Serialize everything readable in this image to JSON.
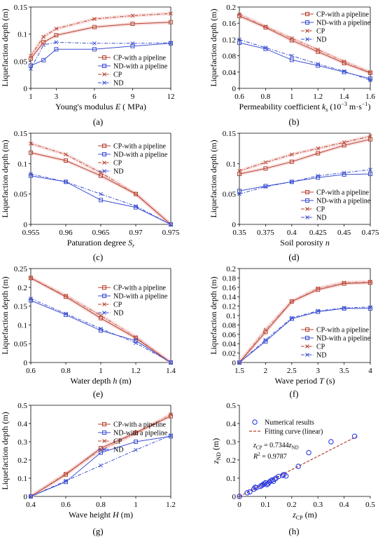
{
  "colors": {
    "cp": "#b5422e",
    "nd": "#3b4fd1",
    "fit": "#b5422e",
    "scatter": "#2030e0"
  },
  "chart_data": [
    {
      "panel": "(a)",
      "type": "line",
      "xlabel_pre": "Young's modulus ",
      "xlabel_var": "E",
      "xlabel_post": " ( MPa)",
      "ylabel": "Liquefaction depth (m)",
      "xlim": [
        1,
        12
      ],
      "ylim": [
        0,
        0.15
      ],
      "xticks": [
        1,
        3,
        6,
        9,
        12
      ],
      "xtick_labels": [
        "1",
        "3",
        "6",
        "9",
        "12"
      ],
      "yticks": [
        0,
        0.05,
        0.1,
        0.15
      ],
      "ytick_labels": [
        "0",
        "0.05",
        "0.1",
        "0.15"
      ],
      "x": [
        1,
        2,
        3,
        6,
        9,
        12
      ],
      "series": [
        {
          "name": "CP-with a pipeline",
          "style": "cp",
          "values": [
            0.055,
            0.085,
            0.098,
            0.113,
            0.119,
            0.122
          ]
        },
        {
          "name": "ND-with a pipeline",
          "style": "nd",
          "values": [
            0.042,
            0.052,
            0.072,
            0.072,
            0.078,
            0.083
          ]
        },
        {
          "name": "CP",
          "style": "cpd",
          "values": [
            0.06,
            0.095,
            0.11,
            0.128,
            0.134,
            0.138
          ]
        },
        {
          "name": "ND",
          "style": "ndd",
          "values": [
            0.036,
            0.08,
            0.085,
            0.083,
            0.083,
            0.084
          ]
        }
      ]
    },
    {
      "panel": "(b)",
      "type": "line",
      "xlabel_pre": "Permeability coefficient ",
      "xlabel_var": "k",
      "xlabel_sub": "s",
      "xlabel_post": " (10",
      "xlabel_sup": "−3",
      "xlabel_post2": " m·s",
      "xlabel_sup2": "−1",
      "xlabel_post3": ")",
      "ylabel": "Liquefaction depth (m)",
      "xlim": [
        0.6,
        1.6
      ],
      "ylim": [
        0,
        0.2
      ],
      "xticks": [
        0.6,
        0.8,
        1,
        1.2,
        1.4,
        1.6
      ],
      "xtick_labels": [
        "0.6",
        "0.8",
        "1",
        "1.2",
        "1.4",
        "1.6"
      ],
      "yticks": [
        0,
        0.04,
        0.08,
        0.12,
        0.16,
        0.2
      ],
      "ytick_labels": [
        "0",
        "0.04",
        "0.08",
        "0.12",
        "0.16",
        "0.2"
      ],
      "x": [
        0.6,
        0.8,
        1.0,
        1.2,
        1.4,
        1.6
      ],
      "series": [
        {
          "name": "CP-with a pipeline",
          "style": "cp",
          "values": [
            0.178,
            0.15,
            0.118,
            0.09,
            0.062,
            0.038
          ]
        },
        {
          "name": "ND-with a pipeline",
          "style": "nd",
          "values": [
            0.112,
            0.097,
            0.07,
            0.056,
            0.04,
            0.024
          ]
        },
        {
          "name": "CP",
          "style": "cpd",
          "values": [
            0.182,
            0.152,
            0.123,
            0.095,
            0.066,
            0.04
          ]
        },
        {
          "name": "ND",
          "style": "ndd",
          "values": [
            0.12,
            0.1,
            0.08,
            0.06,
            0.042,
            0.02
          ]
        }
      ]
    },
    {
      "panel": "(c)",
      "type": "line",
      "xlabel_pre": "Paturation degree ",
      "xlabel_var": "S",
      "xlabel_sub": "r",
      "xlabel_post": "",
      "ylabel": "Liquefaction depth (m)",
      "xlim": [
        0.955,
        0.975
      ],
      "ylim": [
        0,
        0.15
      ],
      "xticks": [
        0.955,
        0.96,
        0.965,
        0.97,
        0.975
      ],
      "xtick_labels": [
        "0.955",
        "0.96",
        "0.965",
        "0.97",
        "0.975"
      ],
      "yticks": [
        0,
        0.05,
        0.1,
        0.15
      ],
      "ytick_labels": [
        "0",
        "0.05",
        "0.1",
        "0.15"
      ],
      "x": [
        0.955,
        0.96,
        0.965,
        0.97,
        0.975
      ],
      "series": [
        {
          "name": "CP-with a pipeline",
          "style": "cp",
          "values": [
            0.118,
            0.105,
            0.08,
            0.05,
            0.0
          ]
        },
        {
          "name": "ND-with a pipeline",
          "style": "nd",
          "values": [
            0.08,
            0.07,
            0.04,
            0.028,
            0.0
          ]
        },
        {
          "name": "CP",
          "style": "cpd",
          "values": [
            0.133,
            0.115,
            0.085,
            0.05,
            0.0
          ]
        },
        {
          "name": "ND",
          "style": "ndd",
          "values": [
            0.083,
            0.07,
            0.05,
            0.03,
            0.0
          ]
        }
      ]
    },
    {
      "panel": "(d)",
      "type": "line",
      "xlabel_pre": "Soil porosity ",
      "xlabel_var": "n",
      "xlabel_post": "",
      "ylabel": "Liquefaction depth (m)",
      "xlim": [
        0.35,
        0.475
      ],
      "ylim": [
        0,
        0.15
      ],
      "xticks": [
        0.35,
        0.375,
        0.4,
        0.425,
        0.45,
        0.475
      ],
      "xtick_labels": [
        "0.35",
        "0.375",
        "0.4",
        "0.425",
        "0.45",
        "0.475"
      ],
      "yticks": [
        0,
        0.05,
        0.1,
        0.15
      ],
      "ytick_labels": [
        "0",
        "0.05",
        "0.1",
        "0.15"
      ],
      "x": [
        0.35,
        0.375,
        0.4,
        0.425,
        0.45,
        0.475
      ],
      "series": [
        {
          "name": "CP-with a pipeline",
          "style": "cp",
          "values": [
            0.083,
            0.092,
            0.103,
            0.117,
            0.13,
            0.14
          ]
        },
        {
          "name": "ND-with a pipeline",
          "style": "nd",
          "values": [
            0.055,
            0.063,
            0.07,
            0.077,
            0.082,
            0.083
          ]
        },
        {
          "name": "CP",
          "style": "cpd",
          "values": [
            0.088,
            0.102,
            0.115,
            0.125,
            0.135,
            0.145
          ]
        },
        {
          "name": "ND",
          "style": "ndd",
          "values": [
            0.05,
            0.062,
            0.07,
            0.08,
            0.085,
            0.09
          ]
        }
      ]
    },
    {
      "panel": "(e)",
      "type": "line",
      "xlabel_pre": "Water depth ",
      "xlabel_var": "h",
      "xlabel_post": " (m)",
      "ylabel": "Liquefaction depth (m)",
      "xlim": [
        0.6,
        1.4
      ],
      "ylim": [
        0,
        0.25
      ],
      "xticks": [
        0.6,
        0.8,
        1,
        1.2,
        1.4
      ],
      "xtick_labels": [
        "0.6",
        "0.8",
        "1",
        "1.2",
        "1.4"
      ],
      "yticks": [
        0,
        0.05,
        0.1,
        0.15,
        0.2,
        0.25
      ],
      "ytick_labels": [
        "0",
        "0.05",
        "0.1",
        "0.15",
        "0.2",
        "0.25"
      ],
      "x": [
        0.6,
        0.8,
        1.0,
        1.2,
        1.4
      ],
      "series": [
        {
          "name": "CP-with a pipeline",
          "style": "cp",
          "values": [
            0.225,
            0.175,
            0.118,
            0.065,
            0.0
          ]
        },
        {
          "name": "ND-with a pipeline",
          "style": "nd",
          "values": [
            0.165,
            0.127,
            0.085,
            0.058,
            0.0
          ]
        },
        {
          "name": "CP",
          "style": "cpd",
          "values": [
            0.225,
            0.178,
            0.125,
            0.068,
            0.0
          ]
        },
        {
          "name": "ND",
          "style": "ndd",
          "values": [
            0.17,
            0.13,
            0.09,
            0.052,
            0.0
          ]
        }
      ]
    },
    {
      "panel": "(f)",
      "type": "line",
      "xlabel_pre": "Wave period ",
      "xlabel_var": "T",
      "xlabel_post": " (s)",
      "ylabel": "Liquefaction depth (m)",
      "xlim": [
        1.5,
        4
      ],
      "ylim": [
        0,
        0.2
      ],
      "xticks": [
        1.5,
        2,
        2.5,
        3,
        3.5,
        4
      ],
      "xtick_labels": [
        "1.5",
        "2",
        "2.5",
        "3",
        "3.5",
        "4"
      ],
      "yticks": [
        0,
        0.02,
        0.04,
        0.06,
        0.08,
        0.1,
        0.12,
        0.14,
        0.16,
        0.18,
        0.2
      ],
      "ytick_labels": [
        "0",
        "0.02",
        "0.04",
        "0.06",
        "0.08",
        "0.1",
        "0.12",
        "0.14",
        "0.16",
        "0.18",
        "0.2"
      ],
      "x": [
        1.5,
        2,
        2.5,
        3,
        3.5,
        4
      ],
      "series": [
        {
          "name": "CP-with a pipeline",
          "style": "cp",
          "values": [
            0.0,
            0.065,
            0.13,
            0.155,
            0.168,
            0.17
          ]
        },
        {
          "name": "ND-with a pipeline",
          "style": "nd",
          "values": [
            0.0,
            0.045,
            0.093,
            0.108,
            0.115,
            0.115
          ]
        },
        {
          "name": "CP",
          "style": "cpd",
          "values": [
            0.0,
            0.07,
            0.13,
            0.158,
            0.17,
            0.172
          ]
        },
        {
          "name": "ND",
          "style": "ndd",
          "values": [
            0.0,
            0.048,
            0.095,
            0.11,
            0.116,
            0.118
          ]
        }
      ]
    },
    {
      "panel": "(g)",
      "type": "line",
      "xlabel_pre": "Wave height ",
      "xlabel_var": "H",
      "xlabel_post": " (m)",
      "ylabel": "Liquefaction depth (m)",
      "xlim": [
        0.4,
        1.2
      ],
      "ylim": [
        0,
        0.5
      ],
      "xticks": [
        0.4,
        0.6,
        0.8,
        1,
        1.2
      ],
      "xtick_labels": [
        "0.4",
        "0.6",
        "0.8",
        "1",
        "1.2"
      ],
      "yticks": [
        0,
        0.1,
        0.2,
        0.3,
        0.4,
        0.5
      ],
      "ytick_labels": [
        "0",
        "0.1",
        "0.2",
        "0.3",
        "0.4",
        "0.5"
      ],
      "x": [
        0.4,
        0.6,
        0.8,
        1.0,
        1.2
      ],
      "series": [
        {
          "name": "CP-with a pipeline",
          "style": "cp",
          "values": [
            0.0,
            0.12,
            0.265,
            0.35,
            0.44
          ]
        },
        {
          "name": "ND-with a pipeline",
          "style": "nd",
          "values": [
            0.0,
            0.08,
            0.24,
            0.3,
            0.33
          ]
        },
        {
          "name": "CP",
          "style": "cpd",
          "values": [
            0.0,
            0.125,
            0.255,
            0.345,
            0.45
          ]
        },
        {
          "name": "ND",
          "style": "ndd",
          "values": [
            0.0,
            0.085,
            0.17,
            0.255,
            0.335
          ]
        }
      ]
    },
    {
      "panel": "(h)",
      "type": "scatter",
      "xlabel": "z",
      "xlabel_sub": "CP",
      "xlabel_post": " (m)",
      "ylabel": "z",
      "ylabel_sub": "ND",
      "ylabel_post": " (m)",
      "xlim": [
        0,
        0.5
      ],
      "ylim": [
        0,
        0.5
      ],
      "xticks": [
        0,
        0.1,
        0.2,
        0.3,
        0.4,
        0.5
      ],
      "xtick_labels": [
        "0",
        "0.1",
        "0.2",
        "0.3",
        "0.4",
        "0.5"
      ],
      "yticks": [
        0,
        0.1,
        0.2,
        0.3,
        0.4,
        0.5
      ],
      "ytick_labels": [
        "0",
        "0.1",
        "0.2",
        "0.3",
        "0.4",
        "0.5"
      ],
      "legend": [
        "Numerical results",
        "Fitting curve (linear)"
      ],
      "equation": {
        "lhs": "z",
        "lhs_sub": "CP",
        "mid": " = 0.7344",
        "rhs": "z",
        "rhs_sub": "ND"
      },
      "r2": {
        "pre": "R",
        "sup": "2",
        "post": " = 0.9787"
      },
      "fit": {
        "slope": 0.7344,
        "x_range": [
          0,
          0.45
        ]
      },
      "points": [
        [
          0.0,
          0.0
        ],
        [
          0.03,
          0.02
        ],
        [
          0.04,
          0.025
        ],
        [
          0.055,
          0.04
        ],
        [
          0.06,
          0.05
        ],
        [
          0.065,
          0.048
        ],
        [
          0.08,
          0.055
        ],
        [
          0.085,
          0.06
        ],
        [
          0.09,
          0.065
        ],
        [
          0.095,
          0.07
        ],
        [
          0.1,
          0.075
        ],
        [
          0.105,
          0.065
        ],
        [
          0.11,
          0.07
        ],
        [
          0.115,
          0.08
        ],
        [
          0.12,
          0.085
        ],
        [
          0.125,
          0.09
        ],
        [
          0.13,
          0.083
        ],
        [
          0.135,
          0.095
        ],
        [
          0.14,
          0.1
        ],
        [
          0.15,
          0.11
        ],
        [
          0.165,
          0.115
        ],
        [
          0.17,
          0.12
        ],
        [
          0.178,
          0.112
        ],
        [
          0.225,
          0.165
        ],
        [
          0.265,
          0.24
        ],
        [
          0.35,
          0.3
        ],
        [
          0.44,
          0.33
        ]
      ]
    }
  ]
}
